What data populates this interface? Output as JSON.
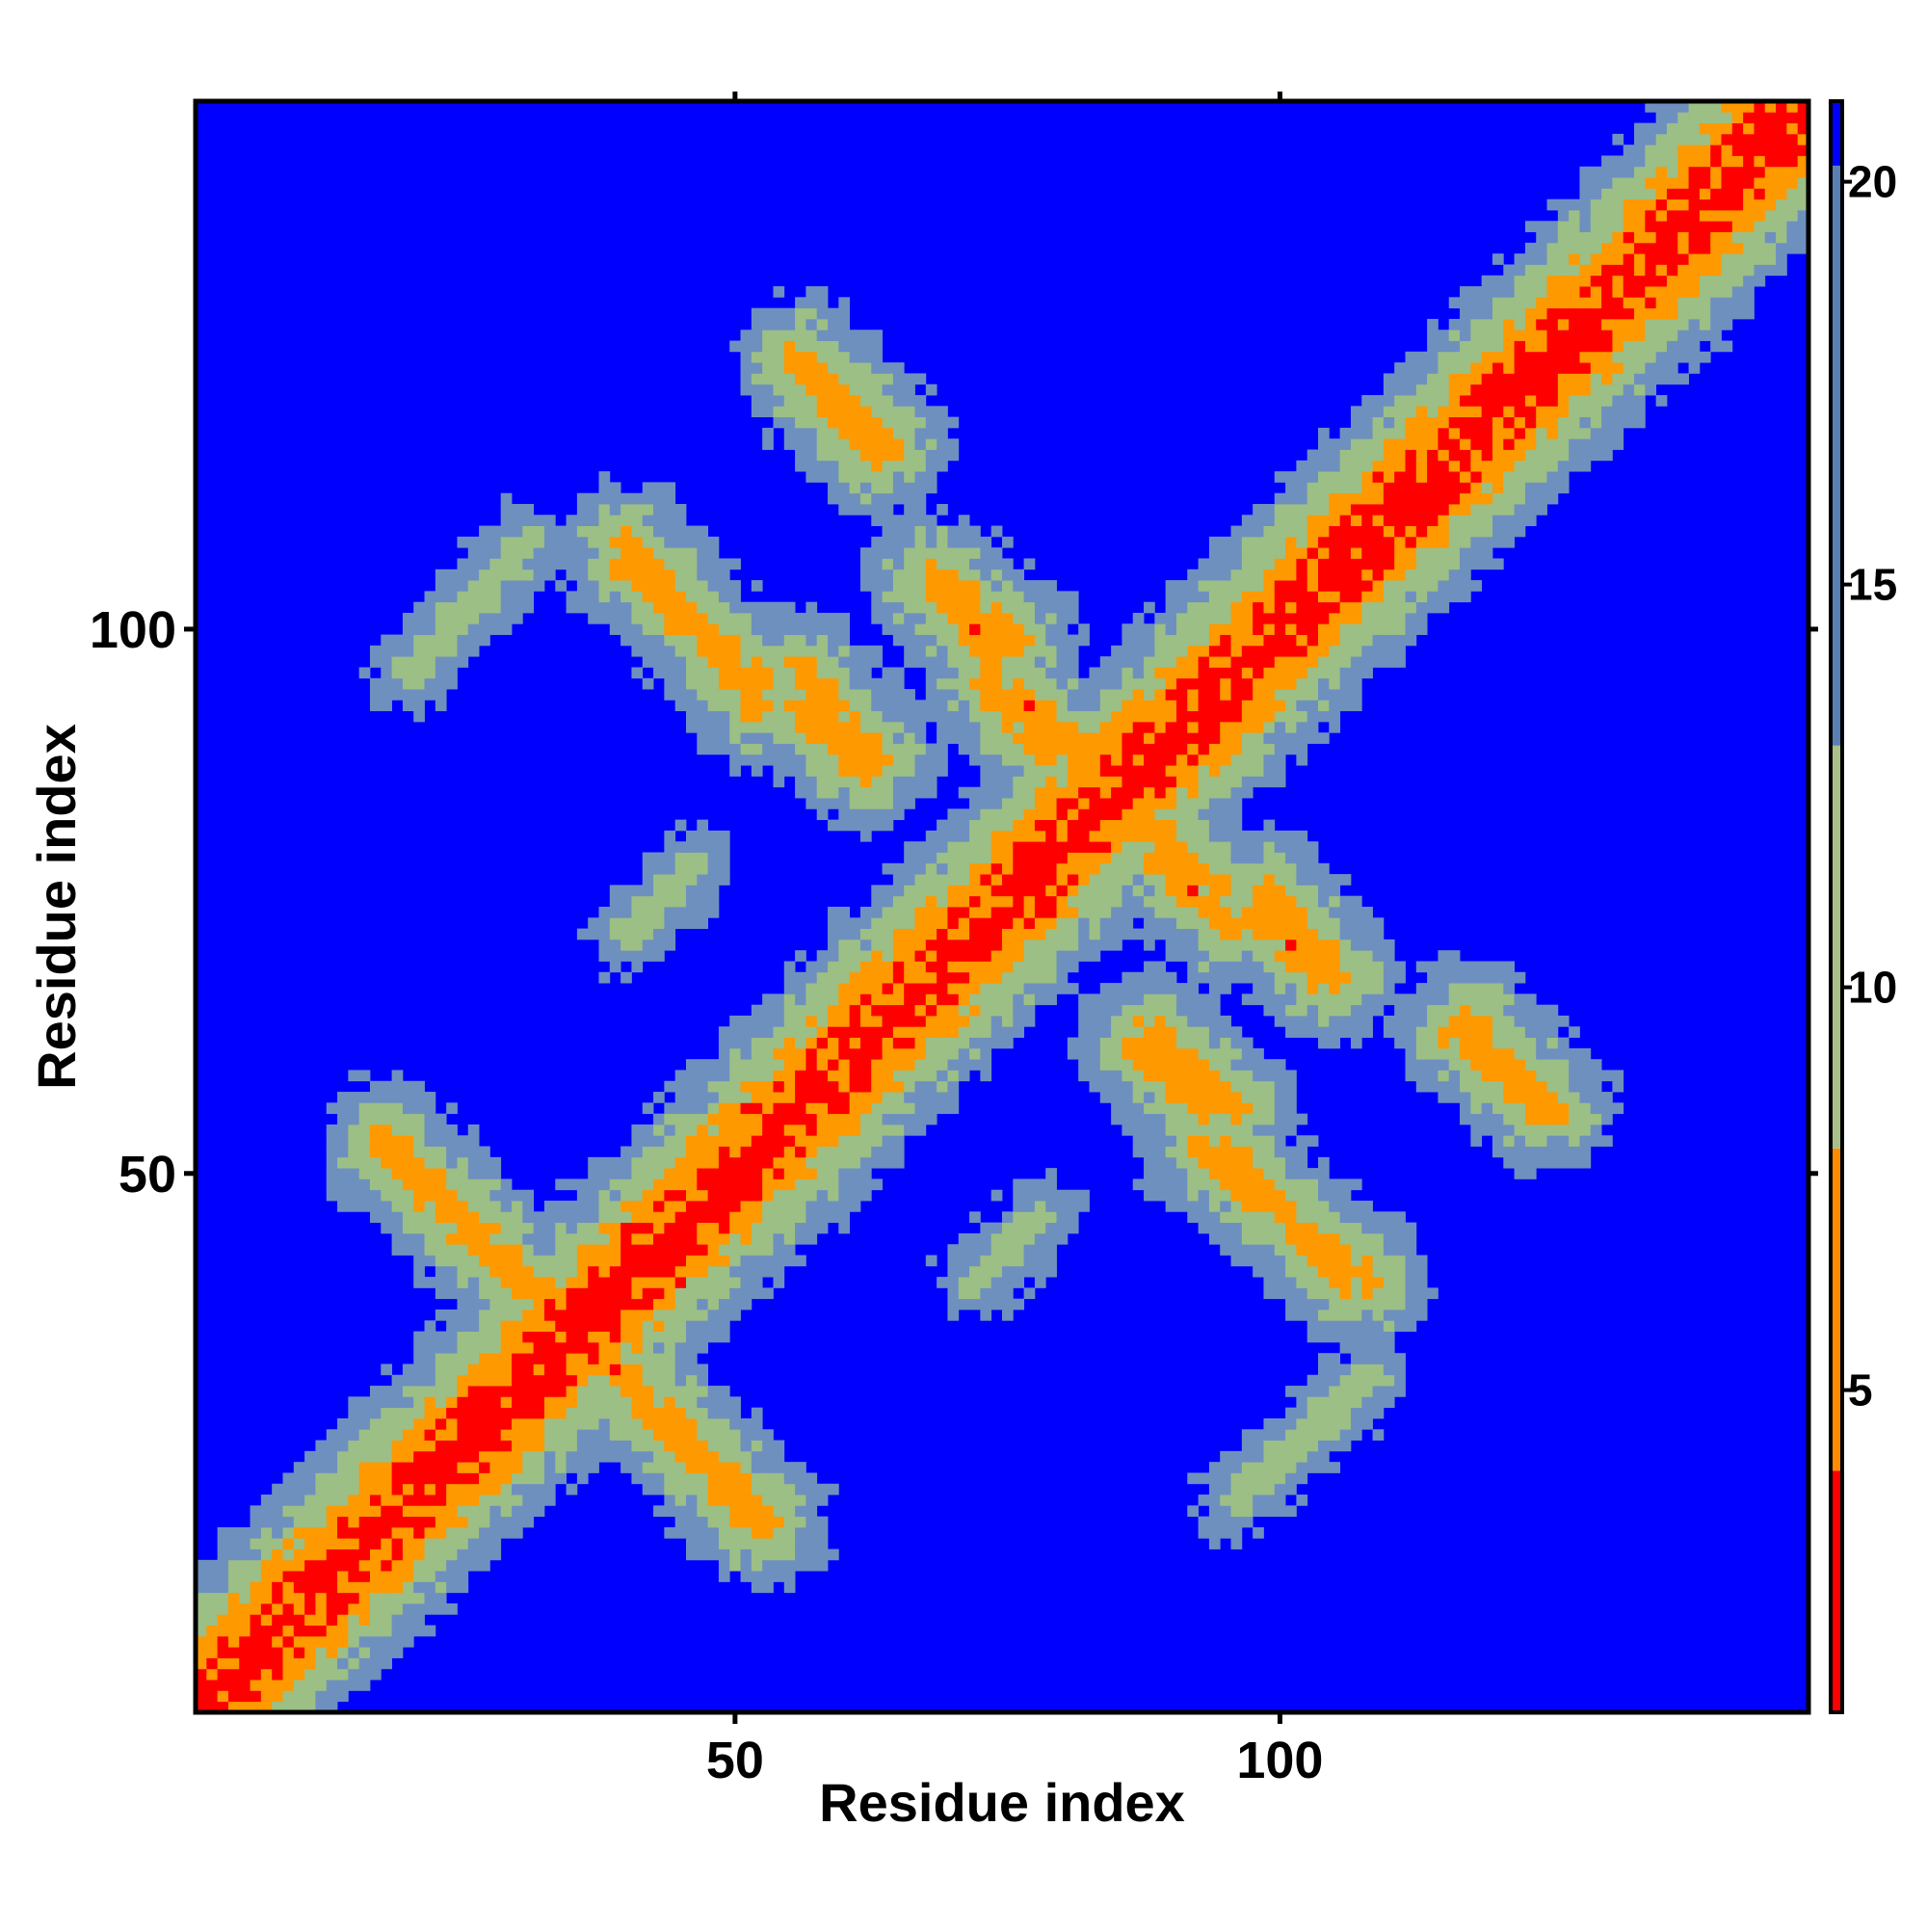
{
  "chart_data": {
    "type": "heatmap",
    "title": "",
    "xlabel": "Residue index",
    "ylabel": "Residue index",
    "n_residues": 148,
    "xlim": [
      1,
      148
    ],
    "ylim": [
      1,
      148
    ],
    "x_ticks": [
      50,
      100
    ],
    "y_ticks": [
      50,
      100
    ],
    "colorbar": {
      "ticks": [
        5,
        10,
        15,
        20
      ],
      "range": [
        1,
        21
      ],
      "colors": {
        "contact": "#ff0000",
        "near": "#ff9900",
        "mid": "#9cbf85",
        "far": "#6e90bf",
        "background": "#0000ff"
      },
      "bands": [
        {
          "from": 1,
          "to": 4,
          "color": "#ff0000"
        },
        {
          "from": 4,
          "to": 8,
          "color": "#ff8c00"
        },
        {
          "from": 8,
          "to": 13,
          "color": "#a8c08a"
        },
        {
          "from": 13,
          "to": 21,
          "color": "#5a7fb5"
        }
      ]
    },
    "contact_segments": [
      {
        "type": "diagonal",
        "i_start": 1,
        "i_end": 148,
        "width": 3,
        "level": 2
      },
      {
        "type": "anti",
        "x_start": 18,
        "y_start": 52,
        "x_end": 34,
        "y_end": 37,
        "level": 6
      },
      {
        "type": "anti",
        "x_start": 36,
        "y_start": 35,
        "x_end": 53,
        "y_end": 18,
        "level": 6
      },
      {
        "type": "anti",
        "x_start": 40,
        "y_start": 106,
        "x_end": 52,
        "y_end": 95,
        "level": 6
      },
      {
        "type": "anti",
        "x_start": 56,
        "y_start": 124,
        "x_end": 63,
        "y_end": 116,
        "level": 6
      },
      {
        "type": "anti",
        "x_start": 56,
        "y_start": 93,
        "x_end": 62,
        "y_end": 87,
        "level": 6
      },
      {
        "type": "anti",
        "x_start": 68,
        "y_start": 104,
        "x_end": 74,
        "y_end": 98,
        "level": 6
      },
      {
        "type": "anti",
        "x_start": 76,
        "y_start": 94,
        "x_end": 81,
        "y_end": 89,
        "level": 6
      },
      {
        "type": "anti",
        "x_start": 89,
        "y_start": 79,
        "x_end": 95,
        "y_end": 73,
        "level": 6
      },
      {
        "type": "anti",
        "x_start": 99,
        "y_start": 76,
        "x_end": 105,
        "y_end": 68,
        "level": 6
      },
      {
        "type": "anti",
        "x_start": 88,
        "y_start": 63,
        "x_end": 96,
        "y_end": 56,
        "level": 6
      },
      {
        "type": "anti",
        "x_start": 93,
        "y_start": 52,
        "x_end": 108,
        "y_end": 40,
        "level": 6
      },
      {
        "type": "anti",
        "x_start": 117,
        "y_start": 64,
        "x_end": 125,
        "y_end": 56,
        "level": 6
      },
      {
        "type": "para",
        "x_start": 20,
        "y_start": 96,
        "x_end": 31,
        "y_end": 108,
        "level": 11
      },
      {
        "type": "para",
        "x_start": 40,
        "y_start": 72,
        "x_end": 46,
        "y_end": 78,
        "level": 11
      },
      {
        "type": "para",
        "x_start": 96,
        "y_start": 20,
        "x_end": 108,
        "y_end": 31,
        "level": 11
      },
      {
        "type": "para",
        "x_start": 72,
        "y_start": 40,
        "x_end": 78,
        "y_end": 46,
        "level": 11
      }
    ]
  }
}
